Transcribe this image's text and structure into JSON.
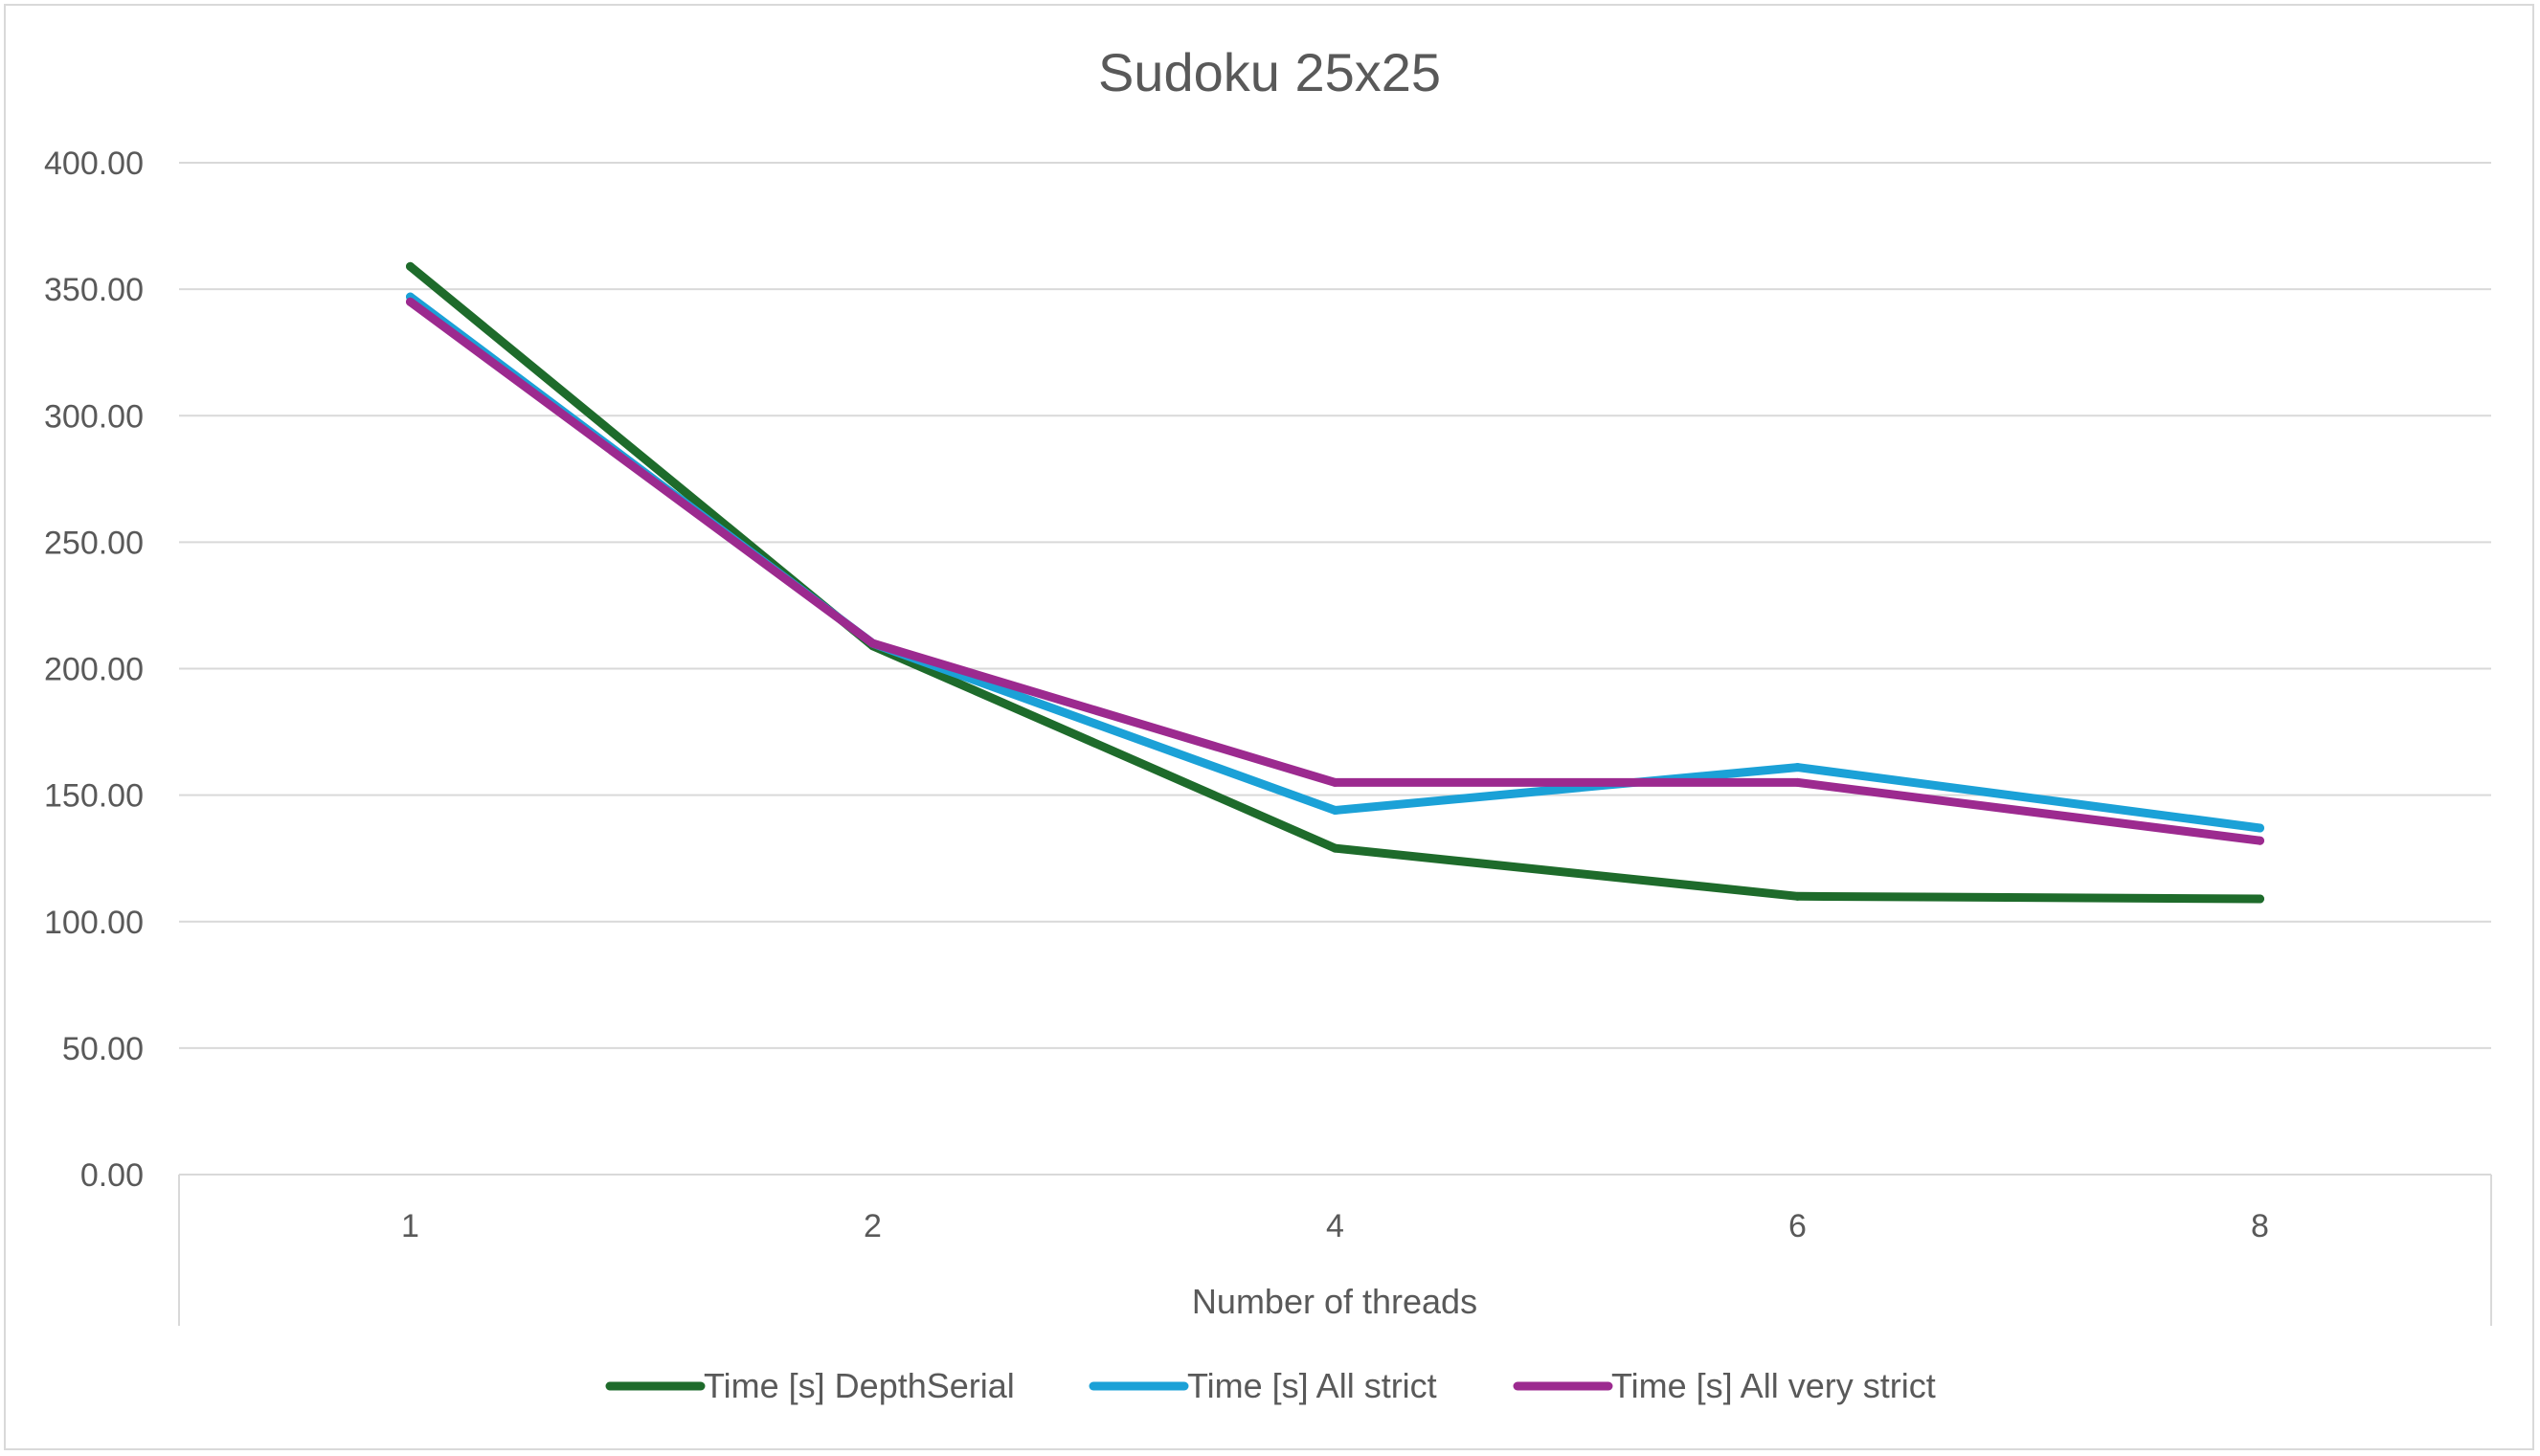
{
  "chart_data": {
    "type": "line",
    "title": "Sudoku 25x25",
    "xlabel": "Number of threads",
    "ylabel": "",
    "categories": [
      "1",
      "2",
      "4",
      "6",
      "8"
    ],
    "ylim": [
      0,
      400
    ],
    "yticks": [
      "0.00",
      "50.00",
      "100.00",
      "150.00",
      "200.00",
      "250.00",
      "300.00",
      "350.00",
      "400.00"
    ],
    "grid": true,
    "legend": "bottom",
    "series": [
      {
        "name": "Time [s] DepthSerial",
        "color": "#1e6b2b",
        "values": [
          359,
          209,
          129,
          110,
          109
        ]
      },
      {
        "name": "Time [s] All strict",
        "color": "#1ba1d7",
        "values": [
          347,
          210,
          144,
          161,
          137
        ]
      },
      {
        "name": "Time [s] All very strict",
        "color": "#9c2a8f",
        "values": [
          345,
          210,
          155,
          155,
          132
        ]
      }
    ]
  }
}
